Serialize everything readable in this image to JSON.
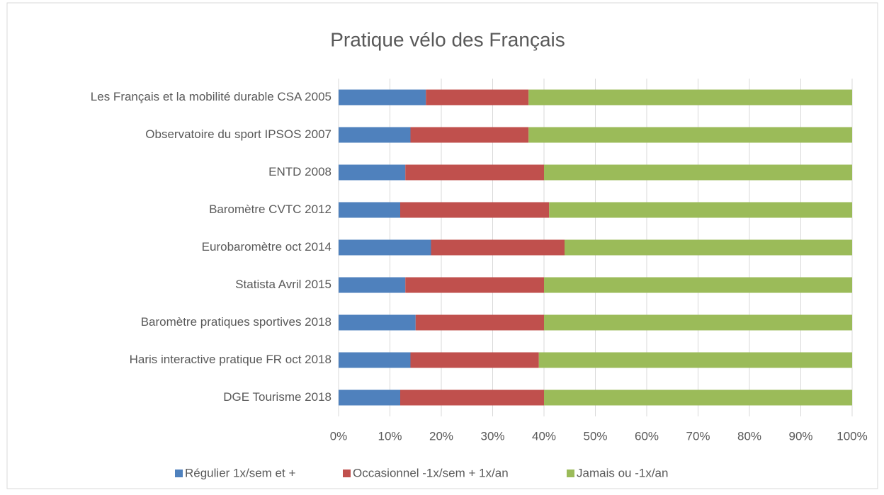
{
  "chart_data": {
    "type": "stacked_barh",
    "title": "Pratique vélo des Français",
    "categories": [
      "Les Français et la mobilité durable CSA 2005",
      "Observatoire du sport IPSOS 2007",
      "ENTD 2008",
      "Baromètre CVTC 2012",
      "Eurobaromètre oct 2014",
      "Statista Avril 2015",
      "Baromètre pratiques sportives 2018",
      "Haris interactive pratique FR oct 2018",
      "DGE Tourisme 2018"
    ],
    "series": [
      {
        "name": "Régulier 1x/sem et +",
        "color": "#4f81bd",
        "values": [
          17,
          14,
          13,
          12,
          18,
          13,
          15,
          14,
          12
        ]
      },
      {
        "name": "Occasionnel  -1x/sem + 1x/an",
        "color": "#c0504d",
        "values": [
          20,
          23,
          27,
          29,
          26,
          27,
          25,
          25,
          28
        ]
      },
      {
        "name": "Jamais ou -1x/an",
        "color": "#9bbb59",
        "values": [
          63,
          63,
          60,
          59,
          56,
          60,
          60,
          61,
          60
        ]
      }
    ],
    "xlim": [
      0,
      100
    ],
    "xticks": [
      {
        "value": 0,
        "label": "0%"
      },
      {
        "value": 10,
        "label": "10%"
      },
      {
        "value": 20,
        "label": "20%"
      },
      {
        "value": 30,
        "label": "30%"
      },
      {
        "value": 40,
        "label": "40%"
      },
      {
        "value": 50,
        "label": "50%"
      },
      {
        "value": 60,
        "label": "60%"
      },
      {
        "value": 70,
        "label": "70%"
      },
      {
        "value": 80,
        "label": "80%"
      },
      {
        "value": 90,
        "label": "90%"
      },
      {
        "value": 100,
        "label": "100%"
      }
    ],
    "grid": true,
    "legend": "bottom"
  }
}
